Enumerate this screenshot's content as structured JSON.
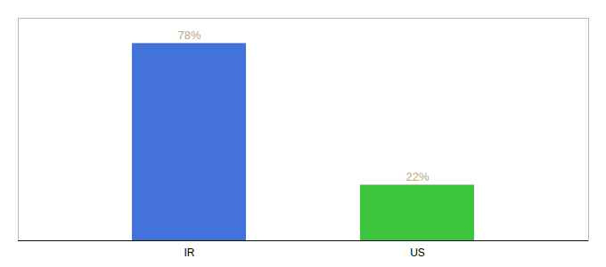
{
  "chart_data": {
    "type": "bar",
    "categories": [
      "IR",
      "US"
    ],
    "values": [
      78,
      22
    ],
    "value_labels": [
      "78%",
      "22%"
    ],
    "colors": [
      "#4472DB",
      "#3DC63D"
    ],
    "ylim": [
      0,
      88
    ],
    "data_labels": true,
    "tick_labels": "x",
    "grid": false
  }
}
